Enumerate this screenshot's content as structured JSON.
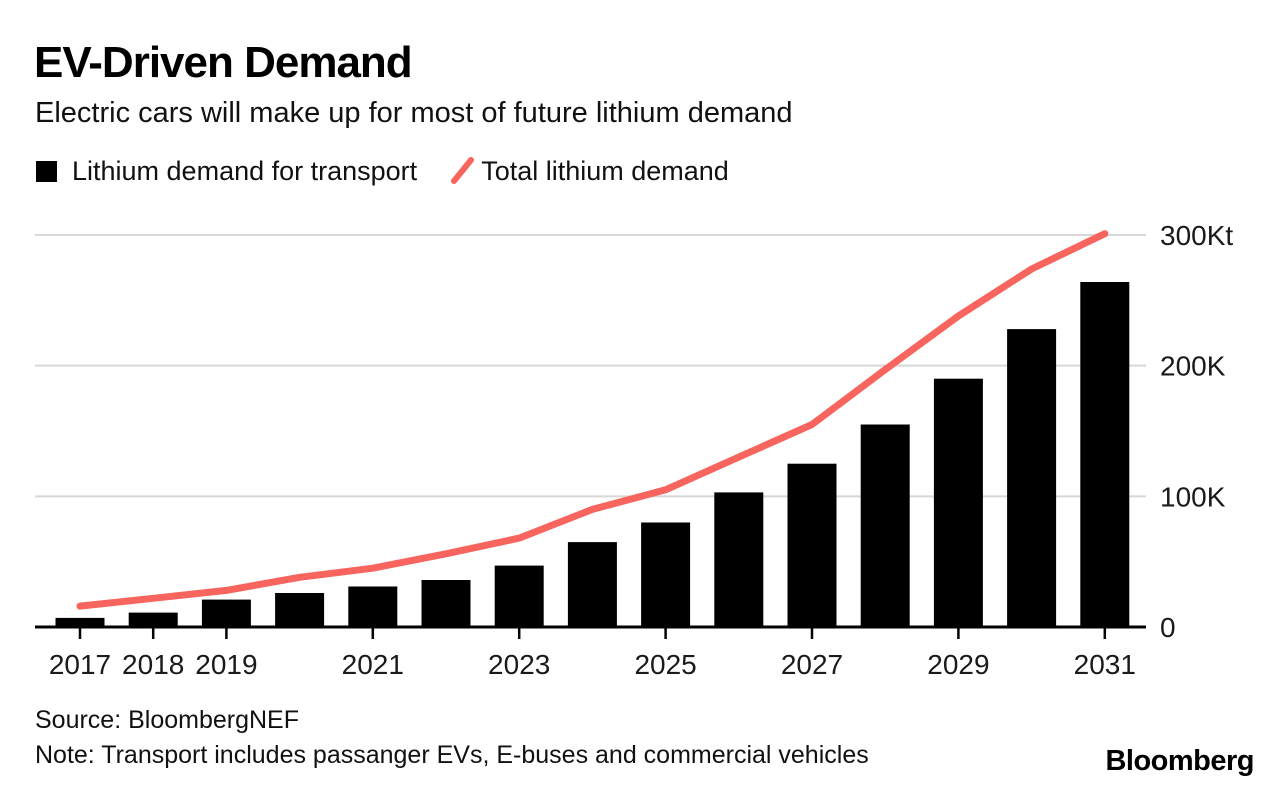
{
  "header": {
    "title": "EV-Driven Demand",
    "subtitle": "Electric cars will make up for most of future lithium demand"
  },
  "legend": {
    "bar_label": "Lithium demand for transport",
    "line_label": "Total lithium demand",
    "slash_icon": "diagonal-line-swatch"
  },
  "colors": {
    "bar": "#000000",
    "line": "#f7655e",
    "grid": "#d8d8d8",
    "axis": "#000000",
    "text": "#1a1a1a"
  },
  "chart_data": {
    "type": "bar",
    "subtype": "bar-with-line-overlay",
    "title": "EV-Driven Demand",
    "subtitle": "Electric cars will make up for most of future lithium demand",
    "unit": "Kt (thousand tonnes)",
    "categories": [
      2017,
      2018,
      2019,
      2020,
      2021,
      2022,
      2023,
      2024,
      2025,
      2026,
      2027,
      2028,
      2029,
      2030,
      2031
    ],
    "series": [
      {
        "name": "Lithium demand for transport",
        "type": "bar",
        "color": "#000000",
        "values": [
          7,
          11,
          21,
          26,
          31,
          36,
          47,
          65,
          80,
          103,
          125,
          155,
          190,
          228,
          264
        ]
      },
      {
        "name": "Total lithium demand",
        "type": "line",
        "color": "#f7655e",
        "values": [
          16,
          22,
          28,
          38,
          45,
          56,
          68,
          90,
          105,
          130,
          155,
          197,
          238,
          274,
          301
        ]
      }
    ],
    "ylim": [
      0,
      300
    ],
    "yticks": [
      {
        "value": 0,
        "label": "0"
      },
      {
        "value": 100,
        "label": "100K"
      },
      {
        "value": 200,
        "label": "200K"
      },
      {
        "value": 300,
        "label": "300Kt"
      }
    ],
    "xticks": [
      {
        "year": 2017,
        "label": "2017"
      },
      {
        "year": 2018,
        "label": "2018"
      },
      {
        "year": 2019,
        "label": "2019"
      },
      {
        "year": 2021,
        "label": "2021"
      },
      {
        "year": 2023,
        "label": "2023"
      },
      {
        "year": 2025,
        "label": "2025"
      },
      {
        "year": 2027,
        "label": "2027"
      },
      {
        "year": 2029,
        "label": "2029"
      },
      {
        "year": 2031,
        "label": "2031"
      }
    ],
    "grid": "horizontal-only",
    "legend_position": "top-left",
    "y_axis_side": "right"
  },
  "footer": {
    "source": "Source: BloombergNEF",
    "note": "Note: Transport includes passanger EVs, E-buses and commercial vehicles",
    "brand": "Bloomberg"
  }
}
